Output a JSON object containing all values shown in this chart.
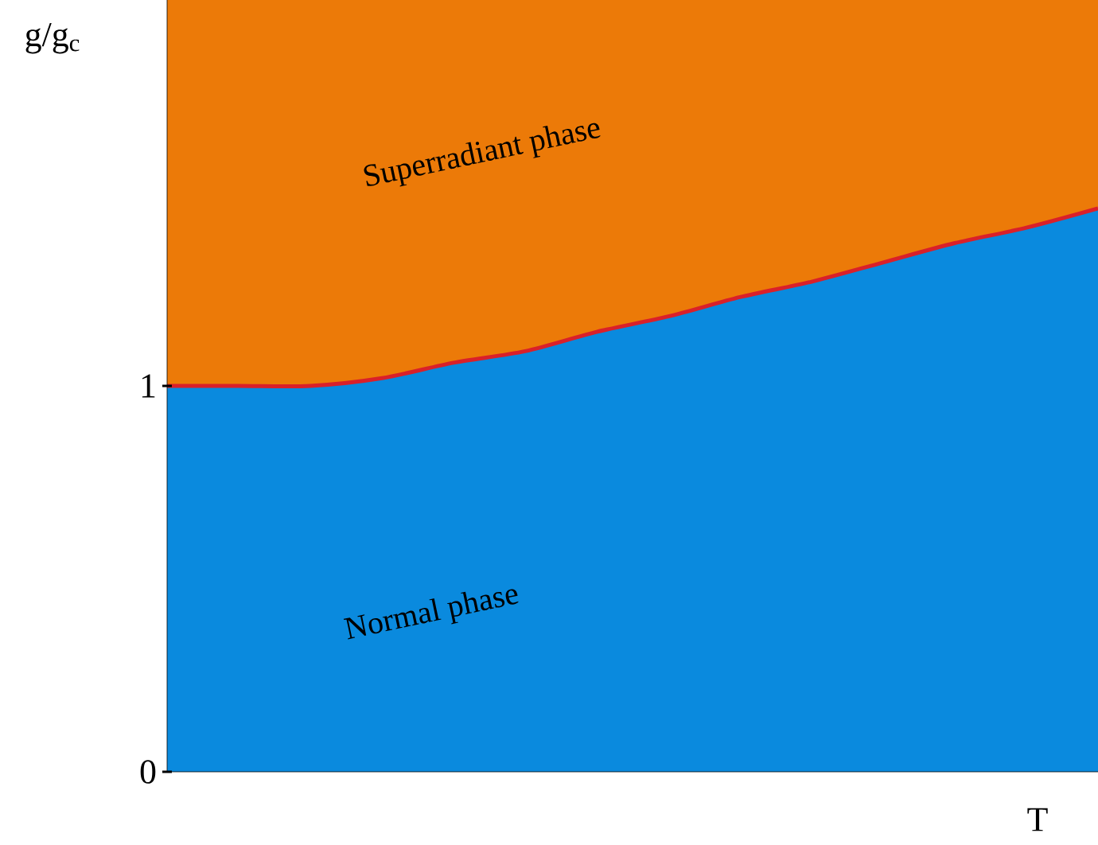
{
  "chart_data": {
    "type": "line",
    "xlabel": "T",
    "ylabel": "g/g$_{c}$",
    "categories": [
      null,
      null,
      null,
      null,
      null,
      null,
      null,
      null,
      null,
      null,
      null,
      null,
      null,
      null
    ],
    "series": [
      {
        "type": "area",
        "name": "Normal phase",
        "color": "#0a8ade",
        "values": [
          1.0,
          1.0,
          1.0,
          1.02,
          1.06,
          1.09,
          1.14,
          1.18,
          1.23,
          1.27,
          1.32,
          1.37,
          1.41,
          1.46
        ]
      },
      {
        "color": "#d9202a",
        "values": [
          1.0,
          1.0,
          1.0,
          1.02,
          1.06,
          1.09,
          1.14,
          1.18,
          1.23,
          1.27,
          1.32,
          1.37,
          1.41,
          1.46
        ]
      }
    ],
    "bands": [
      {
        "axis": "y",
        "from": 1,
        "to": 2,
        "label": "Superradiant phase",
        "color": "#ec7a08"
      }
    ],
    "ylim": [
      0,
      2
    ],
    "yticks": [
      0,
      1
    ],
    "grid": false
  }
}
